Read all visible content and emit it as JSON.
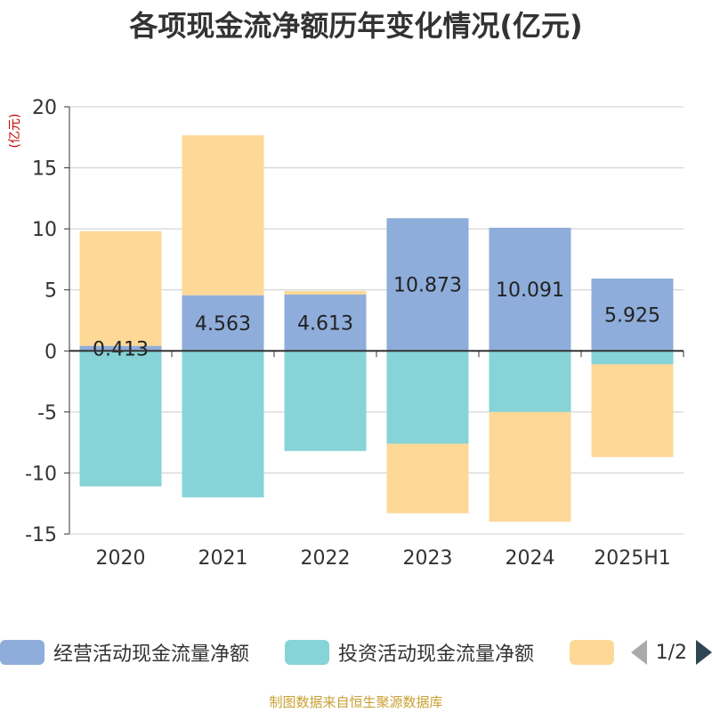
{
  "title": "各项现金流净额历年变化情况(亿元)",
  "footer": "制图数据来自恒生聚源数据库",
  "colors": {
    "title": "#333333",
    "unit": "#cc0000",
    "footer": "#c8a032",
    "axis": "#333333",
    "grid": "#cccccc"
  },
  "legend": {
    "items": [
      {
        "label": "经营活动现金流量净额",
        "color": "#8eadda"
      },
      {
        "label": "投资活动现金流量净额",
        "color": "#86d4d8"
      },
      {
        "label": "",
        "color": "#fdd897"
      }
    ],
    "pager": "1/2"
  },
  "chart_data": {
    "type": "bar",
    "stacked": true,
    "unit": "(亿元)",
    "categories": [
      "2020",
      "2021",
      "2022",
      "2023",
      "2024",
      "2025H1"
    ],
    "ylim": [
      -15,
      20
    ],
    "yticks": [
      20,
      15,
      10,
      5,
      0,
      -5,
      -10,
      -15
    ],
    "grid": true,
    "legend_position": "bottom",
    "series": [
      {
        "name": "经营活动现金流量净额",
        "color": "#8eadda",
        "values": [
          0.413,
          4.563,
          4.613,
          10.873,
          10.091,
          5.925
        ],
        "labels": [
          "0.413",
          "4.563",
          "4.613",
          "10.873",
          "10.091",
          "5.925"
        ]
      },
      {
        "name": "投资活动现金流量净额",
        "color": "#86d4d8",
        "values": [
          -11.1,
          -12.0,
          -8.2,
          -7.6,
          -5.0,
          -1.1
        ]
      },
      {
        "name": "",
        "color": "#fdd897",
        "values": [
          9.4,
          13.1,
          0.3,
          -5.7,
          -9.0,
          -7.6
        ]
      }
    ]
  }
}
